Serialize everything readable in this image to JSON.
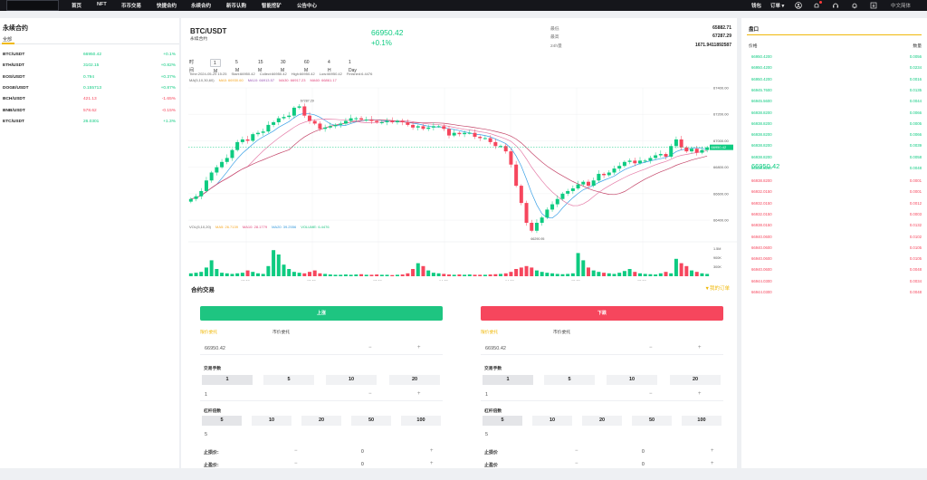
{
  "nav": {
    "items": [
      "首页",
      "NFT",
      "币币交易",
      "快捷合约",
      "永续合约",
      "新币认购",
      "智能挖矿",
      "公告中心"
    ],
    "right": {
      "wallet": "钱包",
      "orders": "订单",
      "language": "中文简体"
    }
  },
  "market": {
    "title": "永续合约",
    "tab": "全部",
    "rows": [
      {
        "symbol": "BTC/USDT",
        "price": "66950.42",
        "change": "+0.1%",
        "dir": "up"
      },
      {
        "symbol": "ETH/USDT",
        "price": "3102.15",
        "change": "+0.82%",
        "dir": "up"
      },
      {
        "symbol": "EOS/USDT",
        "price": "0.794",
        "change": "+0.37%",
        "dir": "up"
      },
      {
        "symbol": "DOGE/USDT",
        "price": "0.155713",
        "change": "+0.87%",
        "dir": "up"
      },
      {
        "symbol": "BCH/USDT",
        "price": "421.13",
        "change": "-1.65%",
        "dir": "down"
      },
      {
        "symbol": "BNB/USDT",
        "price": "578.62",
        "change": "-0.15%",
        "dir": "down"
      },
      {
        "symbol": "ETC/USDT",
        "price": "26.0301",
        "change": "+1.3%",
        "dir": "up"
      }
    ]
  },
  "header": {
    "symbol": "BTC/USDT",
    "subtitle": "永续合约",
    "price": "66950.42",
    "change": "+0.1%",
    "stats": [
      {
        "label": "最低",
        "value": "65882.71"
      },
      {
        "label": "最高",
        "value": "67287.29"
      },
      {
        "label": "24h量",
        "value": "1671.9411892587"
      }
    ]
  },
  "timeframes": [
    "时间",
    "1 M",
    "5 M",
    "15 M",
    "30 M",
    "60 M",
    "4 H",
    "1 Day"
  ],
  "active_timeframe": "1 M",
  "chart_info": {
    "line1": [
      "Time:2024-05-29 15:25",
      "Start:66950.42",
      "Collect:66950.42",
      "High:66950.42",
      "Low:66950.42",
      "Finished:6.4476"
    ],
    "ma": [
      "MA(5,10,30,60)",
      "MA5: 66930.60",
      "MA10: 66913.57",
      "MA30: 66917.23",
      "MA60: 66861.17"
    ],
    "vol": [
      "VOL(5,10,20)",
      "MA5: 26.7139",
      "MA10: 28.1779",
      "MA20: 39.2556",
      "VOLUME: 6.4476"
    ]
  },
  "chart_data": {
    "type": "candlestick",
    "y_ticks": [
      "67400.00",
      "67200.00",
      "67000.00",
      "66800.00",
      "66600.00",
      "66400.00"
    ],
    "x_ticks": [
      "13:56",
      "13:26",
      "13:56",
      "14:26",
      "14:56",
      "15:26",
      "15:56"
    ],
    "vol_ticks": [
      "1.5M",
      "900K",
      "300K"
    ],
    "annotations": {
      "high": "67287.29",
      "low": "66290.95",
      "last": "66950.42"
    },
    "close": [
      66560,
      66580,
      66620,
      66700,
      66760,
      66800,
      66840,
      66870,
      66930,
      66990,
      67010,
      67000,
      67050,
      67060,
      67070,
      67120,
      67140,
      67170,
      67180,
      67190,
      67250,
      67260,
      67190,
      67150,
      67130,
      67090,
      67100,
      67110,
      67120,
      67130,
      67150,
      67170,
      67170,
      67160,
      67160,
      67150,
      67140,
      67140,
      67150,
      67140,
      67150,
      67140,
      67120,
      67100,
      67110,
      67090,
      67100,
      67110,
      67110,
      67090,
      67040,
      67060,
      67050,
      67060,
      67060,
      67030,
      67020,
      67020,
      66990,
      66960,
      66960,
      66920,
      66820,
      66660,
      66530,
      66380,
      66320,
      66380,
      66420,
      66480,
      66520,
      66560,
      66600,
      66620,
      66640,
      66670,
      66690,
      66660,
      66700,
      66750,
      66740,
      66760,
      66790,
      66810,
      66840,
      66850,
      66830,
      66850,
      66850,
      66870,
      66890,
      66900,
      66880,
      66960,
      67010,
      66950,
      66920,
      66940,
      66910,
      66930,
      66950
    ],
    "volume": [
      0.1,
      0.12,
      0.15,
      0.3,
      0.55,
      0.25,
      0.12,
      0.1,
      0.08,
      0.1,
      0.12,
      0.2,
      0.15,
      0.1,
      0.08,
      0.35,
      0.9,
      0.75,
      0.4,
      0.25,
      0.15,
      0.12,
      0.1,
      0.15,
      0.2,
      0.1,
      0.08,
      0.06,
      0.05,
      0.05,
      0.06,
      0.05,
      0.06,
      0.07,
      0.05,
      0.05,
      0.06,
      0.05,
      0.05,
      0.04,
      0.05,
      0.06,
      0.1,
      0.25,
      0.45,
      0.35,
      0.2,
      0.12,
      0.1,
      0.08,
      0.06,
      0.05,
      0.06,
      0.05,
      0.06,
      0.05,
      0.05,
      0.05,
      0.06,
      0.07,
      0.08,
      0.1,
      0.15,
      0.25,
      0.3,
      0.35,
      0.3,
      0.2,
      0.15,
      0.12,
      0.1,
      0.08,
      0.07,
      0.08,
      0.1,
      0.8,
      0.55,
      0.3,
      0.2,
      0.15,
      0.12,
      0.1,
      0.08,
      0.12,
      0.18,
      0.25,
      0.15,
      0.1,
      0.08,
      0.07,
      0.06,
      0.1,
      0.15,
      0.1,
      0.6,
      0.45,
      0.35,
      0.2,
      0.15,
      0.1,
      0.08
    ]
  },
  "trade": {
    "title": "合约交易",
    "my_orders": "我的订单",
    "buy": {
      "button": "上涨",
      "tabs": [
        "限价委托",
        "市价委托"
      ],
      "price": "66950.42",
      "lots_label": "交易手数",
      "lots": [
        "1",
        "5",
        "10",
        "20"
      ],
      "lots_value": "1",
      "leverage_label": "杠杆倍数",
      "leverage": [
        "5",
        "10",
        "20",
        "50",
        "100"
      ],
      "leverage_value": "5",
      "stop_loss_label": "止损价:",
      "take_profit_label": "止盈价:",
      "stop_value": "0"
    },
    "sell": {
      "button": "下跌",
      "tabs": [
        "限价委托",
        "市价委托"
      ],
      "price": "66950.42",
      "lots_label": "交易手数",
      "lots": [
        "1",
        "5",
        "10",
        "20"
      ],
      "lots_value": "1",
      "leverage_label": "杠杆倍数",
      "leverage": [
        "5",
        "10",
        "20",
        "50",
        "100"
      ],
      "leverage_value": "5",
      "stop_loss_label": "止损价",
      "take_profit_label": "止盈价",
      "stop_value": "0"
    }
  },
  "orderbook": {
    "title": "盘口",
    "header_price": "价格",
    "header_qty": "数量",
    "bids": [
      {
        "p": "66950.4200",
        "q": "0.0056"
      },
      {
        "p": "66950.4200",
        "q": "0.0234"
      },
      {
        "p": "66950.4200",
        "q": "0.0016"
      },
      {
        "p": "66945.7600",
        "q": "0.0135"
      },
      {
        "p": "66945.5600",
        "q": "0.0044"
      },
      {
        "p": "66938.8200",
        "q": "0.0066"
      },
      {
        "p": "66938.8200",
        "q": "0.0005"
      },
      {
        "p": "66938.8200",
        "q": "0.0066"
      },
      {
        "p": "66938.8200",
        "q": "0.0039"
      },
      {
        "p": "66938.8200",
        "q": "0.0058"
      },
      {
        "p": "66938.8200",
        "q": "0.0048"
      }
    ],
    "mid": "66950.42",
    "asks": [
      {
        "p": "66938.8200",
        "q": "0.0001"
      },
      {
        "p": "66932.0150",
        "q": "0.0001"
      },
      {
        "p": "66932.0150",
        "q": "0.0012"
      },
      {
        "p": "66932.0150",
        "q": "0.0003"
      },
      {
        "p": "66938.0150",
        "q": "0.0132"
      },
      {
        "p": "66940.0600",
        "q": "0.0102"
      },
      {
        "p": "66940.0600",
        "q": "0.0105"
      },
      {
        "p": "66940.0600",
        "q": "0.0105"
      },
      {
        "p": "66940.0600",
        "q": "0.0048"
      },
      {
        "p": "66944.0300",
        "q": "0.0034"
      },
      {
        "p": "66944.0300",
        "q": "0.0048"
      }
    ]
  }
}
